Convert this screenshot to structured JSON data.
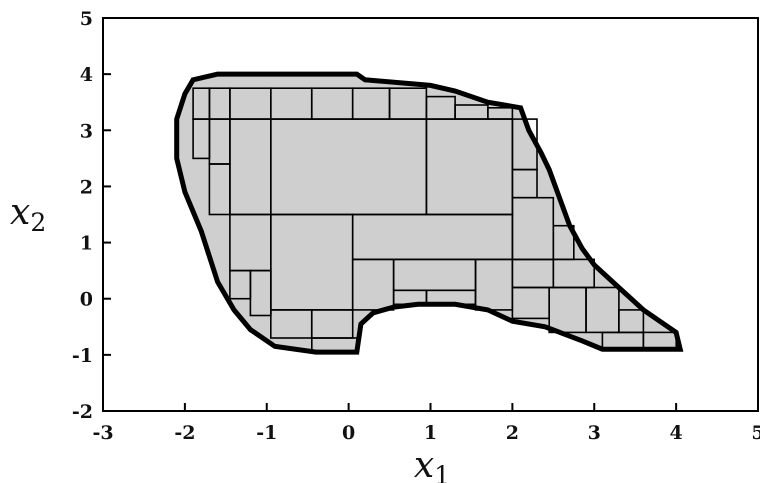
{
  "chart_data": {
    "type": "area",
    "title": "",
    "xlabel": {
      "base": "x",
      "sub": "1"
    },
    "ylabel": {
      "base": "x",
      "sub": "2"
    },
    "xlim": [
      -3,
      5
    ],
    "ylim": [
      -2,
      5
    ],
    "xticks": [
      "-3",
      "-2",
      "-1",
      "0",
      "1",
      "2",
      "3",
      "4",
      "5"
    ],
    "yticks": [
      "-2",
      "-1",
      "0",
      "1",
      "2",
      "3",
      "4",
      "5"
    ],
    "grid": false,
    "fill_color": "#cfcfcf",
    "edge_color": "#000000",
    "region_outline": [
      [
        -2.0,
        3.65
      ],
      [
        -1.9,
        3.9
      ],
      [
        -1.6,
        4.0
      ],
      [
        0.1,
        4.0
      ],
      [
        0.2,
        3.9
      ],
      [
        1.0,
        3.8
      ],
      [
        1.3,
        3.7
      ],
      [
        1.7,
        3.5
      ],
      [
        2.1,
        3.4
      ],
      [
        2.2,
        3.0
      ],
      [
        2.35,
        2.6
      ],
      [
        2.45,
        2.3
      ],
      [
        2.6,
        1.7
      ],
      [
        2.7,
        1.3
      ],
      [
        2.85,
        0.9
      ],
      [
        3.0,
        0.6
      ],
      [
        3.3,
        0.2
      ],
      [
        3.6,
        -0.2
      ],
      [
        4.0,
        -0.6
      ],
      [
        4.05,
        -0.9
      ],
      [
        3.1,
        -0.9
      ],
      [
        2.85,
        -0.75
      ],
      [
        2.4,
        -0.5
      ],
      [
        2.0,
        -0.4
      ],
      [
        1.7,
        -0.2
      ],
      [
        1.3,
        -0.1
      ],
      [
        0.85,
        -0.1
      ],
      [
        0.55,
        -0.15
      ],
      [
        0.3,
        -0.25
      ],
      [
        0.15,
        -0.45
      ],
      [
        0.1,
        -0.95
      ],
      [
        -0.4,
        -0.95
      ],
      [
        -0.9,
        -0.85
      ],
      [
        -1.2,
        -0.55
      ],
      [
        -1.4,
        -0.2
      ],
      [
        -1.6,
        0.3
      ],
      [
        -1.8,
        1.2
      ],
      [
        -2.0,
        1.9
      ],
      [
        -2.1,
        2.5
      ],
      [
        -2.1,
        3.2
      ]
    ],
    "boxes": [
      {
        "x1": -0.95,
        "x2": 0.95,
        "y1": 1.5,
        "y2": 3.2
      },
      {
        "x1": 0.95,
        "x2": 2.0,
        "y1": 1.5,
        "y2": 3.2
      },
      {
        "x1": -1.45,
        "x2": -0.95,
        "y1": 1.5,
        "y2": 3.2
      },
      {
        "x1": -0.95,
        "x2": 0.05,
        "y1": -0.2,
        "y2": 1.5
      },
      {
        "x1": 0.05,
        "x2": 2.0,
        "y1": 0.7,
        "y2": 1.5
      },
      {
        "x1": 0.05,
        "x2": 0.55,
        "y1": -0.2,
        "y2": 0.7
      },
      {
        "x1": 0.55,
        "x2": 1.55,
        "y1": 0.15,
        "y2": 0.7
      },
      {
        "x1": 1.55,
        "x2": 2.0,
        "y1": -0.2,
        "y2": 0.7
      },
      {
        "x1": 2.0,
        "x2": 2.5,
        "y1": 0.7,
        "y2": 1.8
      },
      {
        "x1": -1.45,
        "x2": -0.95,
        "y1": 0.5,
        "y2": 1.5
      },
      {
        "x1": -1.45,
        "x2": -0.95,
        "y1": 3.2,
        "y2": 3.75
      },
      {
        "x1": -0.95,
        "x2": -0.45,
        "y1": 3.2,
        "y2": 3.75
      },
      {
        "x1": -0.45,
        "x2": 0.05,
        "y1": 3.2,
        "y2": 3.75
      },
      {
        "x1": 0.05,
        "x2": 0.5,
        "y1": 3.2,
        "y2": 3.75
      },
      {
        "x1": 0.5,
        "x2": 0.95,
        "y1": 3.2,
        "y2": 3.75
      },
      {
        "x1": 0.95,
        "x2": 1.3,
        "y1": 3.2,
        "y2": 3.6
      },
      {
        "x1": -1.7,
        "x2": -1.45,
        "y1": 2.4,
        "y2": 3.2
      },
      {
        "x1": -1.7,
        "x2": -1.45,
        "y1": 1.5,
        "y2": 2.4
      },
      {
        "x1": 2.0,
        "x2": 2.3,
        "y1": 2.3,
        "y2": 3.2
      },
      {
        "x1": 2.0,
        "x2": 2.3,
        "y1": 1.8,
        "y2": 2.3
      },
      {
        "x1": 2.5,
        "x2": 2.75,
        "y1": 0.7,
        "y2": 1.3
      },
      {
        "x1": 2.0,
        "x2": 2.5,
        "y1": 0.2,
        "y2": 0.7
      },
      {
        "x1": 2.5,
        "x2": 3.0,
        "y1": 0.2,
        "y2": 0.7
      },
      {
        "x1": 2.0,
        "x2": 2.45,
        "y1": -0.35,
        "y2": 0.2
      },
      {
        "x1": 2.45,
        "x2": 2.9,
        "y1": -0.6,
        "y2": 0.2
      },
      {
        "x1": 2.9,
        "x2": 3.3,
        "y1": -0.6,
        "y2": 0.2
      },
      {
        "x1": 3.3,
        "x2": 3.6,
        "y1": -0.6,
        "y2": -0.2
      },
      {
        "x1": 3.1,
        "x2": 3.6,
        "y1": -0.9,
        "y2": -0.6
      },
      {
        "x1": 3.6,
        "x2": 4.0,
        "y1": -0.9,
        "y2": -0.6
      },
      {
        "x1": -0.95,
        "x2": -0.45,
        "y1": -0.7,
        "y2": -0.2
      },
      {
        "x1": -0.45,
        "x2": 0.05,
        "y1": -0.7,
        "y2": -0.2
      },
      {
        "x1": -0.45,
        "x2": 0.1,
        "y1": -0.95,
        "y2": -0.7
      },
      {
        "x1": -1.2,
        "x2": -0.95,
        "y1": -0.3,
        "y2": 0.5
      },
      {
        "x1": -1.45,
        "x2": -1.2,
        "y1": 0.0,
        "y2": 0.5
      },
      {
        "x1": 0.55,
        "x2": 0.95,
        "y1": -0.1,
        "y2": 0.15
      },
      {
        "x1": 0.95,
        "x2": 1.55,
        "y1": -0.1,
        "y2": 0.15
      },
      {
        "x1": -1.9,
        "x2": -1.7,
        "y1": 2.5,
        "y2": 3.2
      },
      {
        "x1": -1.9,
        "x2": -1.7,
        "y1": 3.2,
        "y2": 3.75
      },
      {
        "x1": -1.7,
        "x2": -1.45,
        "y1": 3.2,
        "y2": 3.75
      },
      {
        "x1": 1.3,
        "x2": 1.7,
        "y1": 3.2,
        "y2": 3.45
      },
      {
        "x1": 1.7,
        "x2": 2.0,
        "y1": 3.2,
        "y2": 3.4
      }
    ]
  }
}
